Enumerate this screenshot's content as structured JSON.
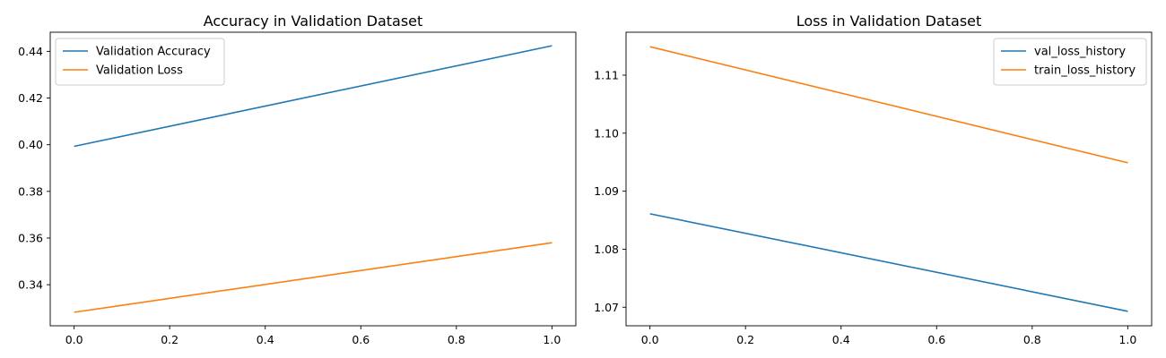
{
  "chart_data": [
    {
      "type": "line",
      "title": "Accuracy in Validation Dataset",
      "xlabel": "",
      "ylabel": "",
      "xlim": [
        -0.05,
        1.05
      ],
      "ylim": [
        0.3224,
        0.4482
      ],
      "xticks": [
        0.0,
        0.2,
        0.4,
        0.6,
        0.8,
        1.0
      ],
      "yticks": [
        0.34,
        0.36,
        0.38,
        0.4,
        0.42,
        0.44
      ],
      "grid": false,
      "legend_position": "upper-left",
      "series": [
        {
          "name": "Validation Accuracy",
          "color": "#1f77b4",
          "x": [
            0,
            1
          ],
          "y": [
            0.3993,
            0.4424
          ]
        },
        {
          "name": "Validation Loss",
          "color": "#ff7f0e",
          "x": [
            0,
            1
          ],
          "y": [
            0.3282,
            0.358
          ]
        }
      ]
    },
    {
      "type": "line",
      "title": "Loss in Validation Dataset",
      "xlabel": "",
      "ylabel": "",
      "xlim": [
        -0.05,
        1.05
      ],
      "ylim": [
        1.0668,
        1.1174
      ],
      "xticks": [
        0.0,
        0.2,
        0.4,
        0.6,
        0.8,
        1.0
      ],
      "yticks": [
        1.07,
        1.08,
        1.09,
        1.1,
        1.11
      ],
      "grid": false,
      "legend_position": "upper-right",
      "series": [
        {
          "name": "val_loss_history",
          "color": "#1f77b4",
          "x": [
            0,
            1
          ],
          "y": [
            1.0861,
            1.0693
          ]
        },
        {
          "name": "train_loss_history",
          "color": "#ff7f0e",
          "x": [
            0,
            1
          ],
          "y": [
            1.1149,
            1.0949
          ]
        }
      ]
    }
  ]
}
